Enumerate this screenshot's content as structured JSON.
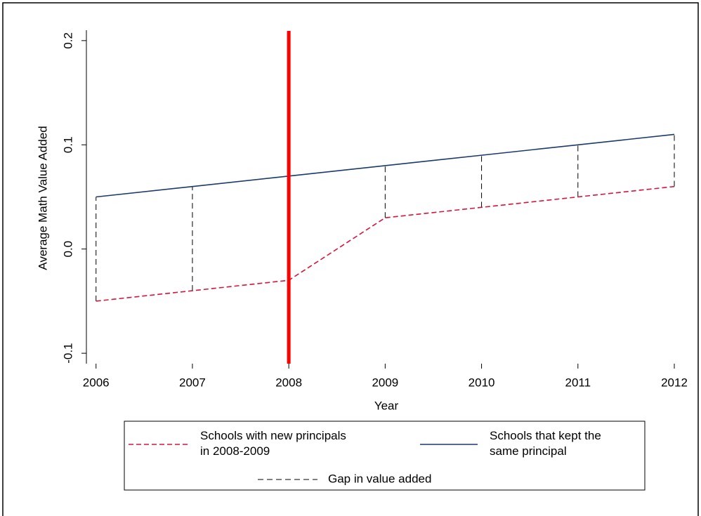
{
  "chart_data": {
    "type": "line",
    "x_label": "Year",
    "y_label": "Average Math Value Added",
    "x": [
      2006,
      2007,
      2008,
      2009,
      2010,
      2011,
      2012
    ],
    "series": [
      {
        "name": "Schools with new principals\nin 2008-2009",
        "color": "#d4163c",
        "dash": true,
        "values": [
          -0.05,
          -0.04,
          -0.03,
          0.03,
          0.04,
          0.05,
          0.06
        ]
      },
      {
        "name": "Schools that kept the\nsame principal",
        "color": "#1a3a6b",
        "dash": false,
        "values": [
          0.05,
          0.06,
          0.07,
          0.08,
          0.09,
          0.1,
          0.11
        ]
      }
    ],
    "gap": {
      "name": "Gap in value added",
      "color": "#000000"
    },
    "vline": {
      "x": 2008,
      "color": "#ff0000"
    },
    "xlim": [
      2005.9,
      2012
    ],
    "ylim": [
      -0.11,
      0.21
    ],
    "xticks": [
      2006,
      2007,
      2008,
      2009,
      2010,
      2011,
      2012
    ],
    "yticks": [
      {
        "value": -0.1,
        "label": "-0.1"
      },
      {
        "value": 0,
        "label": "0.0"
      },
      0.1,
      0.2
    ]
  }
}
